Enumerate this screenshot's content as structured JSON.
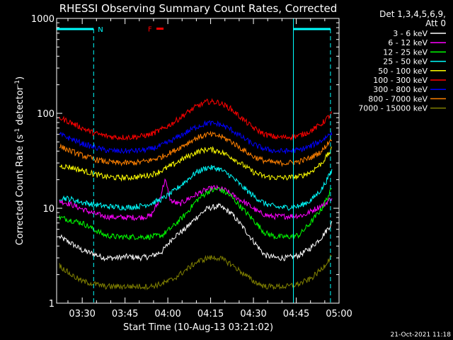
{
  "chart_data": {
    "type": "line",
    "title": "RHESSI Observing Summary Count Rates, Corrected",
    "xlabel": "Start Time (10-Aug-13 03:21:02)",
    "ylabel_parts": [
      "Corrected Count Rate (s",
      "-1",
      " detector",
      "-1",
      ")"
    ],
    "yscale": "log",
    "ylim": [
      1,
      1000
    ],
    "xlim_minutes": [
      201.03,
      300
    ],
    "x_ticks": [
      {
        "label": "03:30",
        "minute": 210
      },
      {
        "label": "03:45",
        "minute": 225
      },
      {
        "label": "04:00",
        "minute": 240
      },
      {
        "label": "04:15",
        "minute": 255
      },
      {
        "label": "04:30",
        "minute": 270
      },
      {
        "label": "04:45",
        "minute": 285
      },
      {
        "label": "05:00",
        "minute": 300
      }
    ],
    "y_ticks": [
      {
        "label": "1",
        "value": 1
      },
      {
        "label": "10",
        "value": 10
      },
      {
        "label": "100",
        "value": 100
      },
      {
        "label": "1000",
        "value": 1000
      }
    ],
    "legend_header": [
      "Det 1,3,4,5,6,9,",
      "Att 0"
    ],
    "legend_position": "right",
    "series": [
      {
        "name": "3 - 6 keV",
        "color": "#ffffff",
        "x": [
          202,
          206,
          210,
          214,
          218,
          222,
          226,
          230,
          234,
          238,
          242,
          246,
          250,
          254,
          258,
          262,
          266,
          270,
          274,
          278,
          282,
          286,
          290,
          294,
          297.5
        ],
        "y": [
          5.0,
          4.3,
          3.6,
          3.3,
          3.0,
          3.0,
          3.1,
          3.0,
          3.1,
          3.5,
          5.0,
          6.0,
          8.0,
          10.0,
          10.5,
          9.0,
          6.5,
          4.5,
          3.2,
          3.0,
          3.0,
          3.2,
          3.8,
          5.0,
          7.0
        ]
      },
      {
        "name": "6 - 12 keV",
        "color": "#ff00ff",
        "x": [
          202,
          206,
          210,
          214,
          218,
          222,
          226,
          230,
          234,
          237,
          239,
          241,
          244,
          248,
          252,
          256,
          260,
          264,
          268,
          272,
          276,
          280,
          284,
          288,
          292,
          295,
          297.5
        ],
        "y": [
          12.0,
          11.0,
          9.8,
          8.8,
          8.2,
          8.0,
          8.0,
          8.0,
          8.3,
          12.0,
          20.0,
          12.0,
          11.0,
          13.0,
          15.0,
          16.5,
          15.5,
          13.0,
          11.0,
          9.0,
          8.2,
          8.2,
          8.3,
          8.5,
          10.0,
          11.0,
          13.0
        ]
      },
      {
        "name": "12 - 25 keV",
        "color": "#00ff00",
        "x": [
          202,
          206,
          210,
          214,
          218,
          222,
          226,
          230,
          234,
          238,
          242,
          246,
          250,
          254,
          258,
          262,
          266,
          270,
          274,
          278,
          282,
          286,
          290,
          294,
          297.5
        ],
        "y": [
          8.0,
          7.5,
          7.0,
          6.0,
          5.2,
          5.0,
          5.0,
          5.0,
          5.0,
          5.2,
          6.5,
          8.5,
          12.0,
          15.0,
          16.0,
          13.5,
          10.0,
          7.5,
          5.5,
          5.0,
          5.0,
          5.2,
          7.0,
          10.0,
          16.0
        ]
      },
      {
        "name": "25 - 50 keV",
        "color": "#00ffff",
        "x": [
          202,
          206,
          210,
          214,
          218,
          222,
          226,
          230,
          234,
          238,
          242,
          246,
          250,
          254,
          258,
          262,
          266,
          270,
          274,
          278,
          282,
          286,
          290,
          294,
          297.5
        ],
        "y": [
          13.0,
          12.5,
          11.5,
          11.0,
          10.5,
          10.3,
          10.2,
          10.5,
          11.2,
          12.5,
          15.0,
          19.0,
          24.0,
          27.0,
          26.0,
          22.0,
          17.0,
          13.5,
          11.2,
          10.3,
          10.2,
          10.5,
          12.0,
          16.0,
          25.0
        ]
      },
      {
        "name": "50 - 100 keV",
        "color": "#ffff00",
        "x": [
          202,
          206,
          210,
          214,
          218,
          222,
          226,
          230,
          234,
          238,
          242,
          246,
          250,
          254,
          258,
          262,
          266,
          270,
          274,
          278,
          282,
          286,
          290,
          294,
          297.5
        ],
        "y": [
          28.0,
          27.0,
          25.0,
          23.0,
          21.5,
          21.0,
          21.0,
          21.5,
          22.5,
          25.0,
          29.0,
          34.0,
          39.0,
          42.0,
          40.0,
          35.0,
          29.0,
          24.0,
          21.5,
          21.0,
          21.0,
          21.5,
          24.0,
          30.0,
          42.0
        ]
      },
      {
        "name": "100 - 300 keV",
        "color": "#ff0000",
        "x": [
          202,
          206,
          210,
          214,
          218,
          222,
          226,
          230,
          234,
          238,
          242,
          246,
          250,
          254,
          258,
          262,
          266,
          270,
          274,
          278,
          282,
          286,
          290,
          294,
          297.5
        ],
        "y": [
          90.0,
          80.0,
          70.0,
          62.0,
          58.0,
          56.0,
          56.0,
          57.0,
          60.0,
          68.0,
          80.0,
          98.0,
          118.0,
          133.0,
          130.0,
          112.0,
          88.0,
          70.0,
          60.0,
          56.0,
          56.0,
          58.0,
          65.0,
          78.0,
          100.0
        ]
      },
      {
        "name": "300 - 800 keV",
        "color": "#0000ff",
        "x": [
          202,
          206,
          210,
          214,
          218,
          222,
          226,
          230,
          234,
          238,
          242,
          246,
          250,
          254,
          258,
          262,
          266,
          270,
          274,
          278,
          282,
          286,
          290,
          294,
          297.5
        ],
        "y": [
          60.0,
          54.0,
          48.0,
          44.0,
          41.0,
          40.0,
          40.0,
          40.5,
          42.0,
          46.0,
          53.0,
          62.0,
          72.0,
          79.0,
          77.0,
          68.0,
          56.0,
          47.0,
          42.0,
          40.0,
          40.0,
          41.0,
          45.0,
          52.0,
          63.0
        ]
      },
      {
        "name": "800 - 7000 keV",
        "color": "#ff8000",
        "x": [
          202,
          206,
          210,
          214,
          218,
          222,
          226,
          230,
          234,
          238,
          242,
          246,
          250,
          254,
          258,
          262,
          266,
          270,
          274,
          278,
          282,
          286,
          290,
          294,
          297.5
        ],
        "y": [
          45.0,
          40.0,
          36.0,
          33.0,
          31.0,
          30.0,
          30.0,
          30.5,
          32.0,
          35.0,
          40.0,
          47.0,
          55.0,
          60.0,
          58.0,
          51.0,
          42.0,
          35.0,
          31.5,
          30.0,
          30.0,
          31.0,
          34.0,
          40.0,
          55.0
        ]
      },
      {
        "name": "7000 - 15000 keV",
        "color": "#808000",
        "x": [
          202,
          206,
          210,
          214,
          218,
          222,
          226,
          230,
          234,
          238,
          242,
          246,
          250,
          254,
          258,
          262,
          266,
          270,
          274,
          278,
          282,
          286,
          290,
          294,
          297.5
        ],
        "y": [
          2.5,
          2.0,
          1.7,
          1.6,
          1.5,
          1.5,
          1.5,
          1.5,
          1.5,
          1.6,
          1.8,
          2.2,
          2.7,
          3.0,
          3.0,
          2.6,
          2.1,
          1.7,
          1.5,
          1.5,
          1.5,
          1.6,
          1.8,
          2.3,
          3.2
        ]
      }
    ],
    "annotations": [
      {
        "label": "N",
        "color": "#00ffff",
        "kind": "night",
        "start_min": 201.03,
        "end_min": 214
      },
      {
        "label": "",
        "color": "#00ffff",
        "kind": "night",
        "start_min": 284,
        "end_min": 297
      }
    ],
    "flare_marker": {
      "label": "F",
      "color": "#ff0000",
      "start_min": 236,
      "end_min": 238.5,
      "y": 780
    }
  },
  "footer_timestamp": "21-Oct-2021 11:18"
}
